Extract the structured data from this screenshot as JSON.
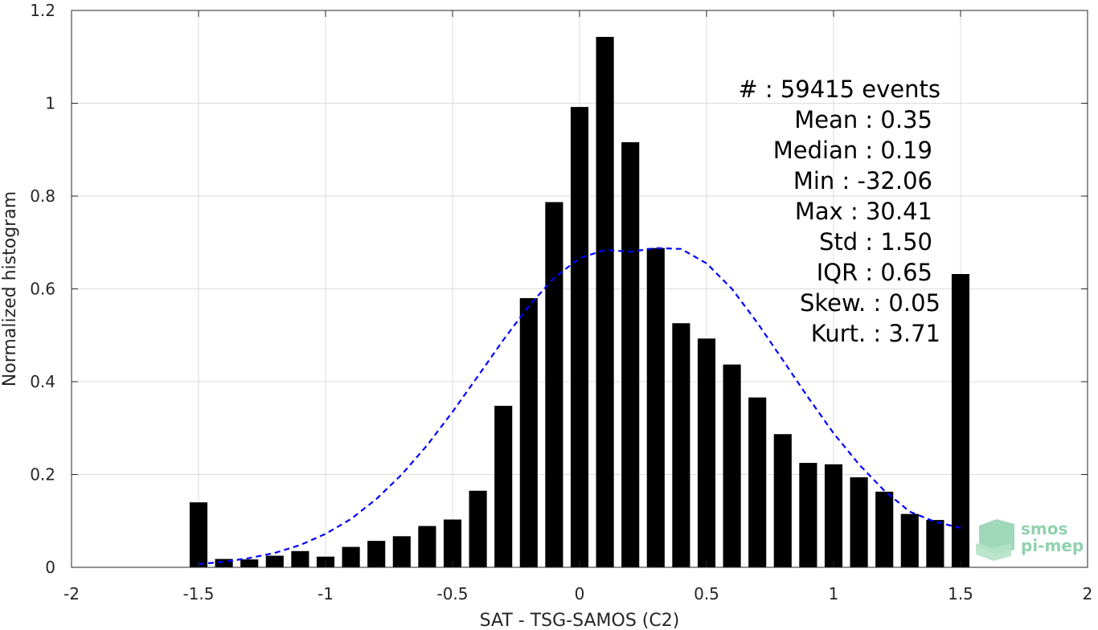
{
  "chart_data": {
    "type": "bar",
    "xlabel": "SAT - TSG-SAMOS (C2)",
    "ylabel": "Normalized histogram",
    "xlim": [
      -2,
      2
    ],
    "ylim": [
      0,
      1.2
    ],
    "x_ticks": [
      -2,
      -1.5,
      -1,
      -0.5,
      0,
      0.5,
      1,
      1.5,
      2
    ],
    "x_tick_labels": [
      "-2",
      "-1.5",
      "-1",
      "-0.5",
      "0",
      "0.5",
      "1",
      "1.5",
      "2"
    ],
    "y_ticks": [
      0,
      0.2,
      0.4,
      0.6,
      0.8,
      1,
      1.2
    ],
    "y_tick_labels": [
      "0",
      "0.2",
      "0.4",
      "0.6",
      "0.8",
      "1",
      "1.2"
    ],
    "grid": true,
    "bar_color": "#000000",
    "bar_width": 0.07,
    "bins": [
      {
        "x": -1.5,
        "y": 0.14
      },
      {
        "x": -1.4,
        "y": 0.018
      },
      {
        "x": -1.3,
        "y": 0.017
      },
      {
        "x": -1.2,
        "y": 0.025
      },
      {
        "x": -1.1,
        "y": 0.035
      },
      {
        "x": -1.0,
        "y": 0.023
      },
      {
        "x": -0.9,
        "y": 0.044
      },
      {
        "x": -0.8,
        "y": 0.057
      },
      {
        "x": -0.7,
        "y": 0.067
      },
      {
        "x": -0.6,
        "y": 0.089
      },
      {
        "x": -0.5,
        "y": 0.103
      },
      {
        "x": -0.4,
        "y": 0.165
      },
      {
        "x": -0.3,
        "y": 0.348
      },
      {
        "x": -0.2,
        "y": 0.58
      },
      {
        "x": -0.1,
        "y": 0.787
      },
      {
        "x": 0.0,
        "y": 0.992
      },
      {
        "x": 0.1,
        "y": 1.143
      },
      {
        "x": 0.2,
        "y": 0.916
      },
      {
        "x": 0.3,
        "y": 0.688
      },
      {
        "x": 0.4,
        "y": 0.526
      },
      {
        "x": 0.5,
        "y": 0.493
      },
      {
        "x": 0.6,
        "y": 0.437
      },
      {
        "x": 0.7,
        "y": 0.366
      },
      {
        "x": 0.8,
        "y": 0.287
      },
      {
        "x": 0.9,
        "y": 0.225
      },
      {
        "x": 1.0,
        "y": 0.222
      },
      {
        "x": 1.1,
        "y": 0.194
      },
      {
        "x": 1.2,
        "y": 0.163
      },
      {
        "x": 1.3,
        "y": 0.115
      },
      {
        "x": 1.4,
        "y": 0.102
      },
      {
        "x": 1.5,
        "y": 0.632
      }
    ],
    "fit_curve": {
      "style": "dashed",
      "color": "#0000ff",
      "x": [
        -1.5,
        -1.4,
        -1.3,
        -1.2,
        -1.1,
        -1.0,
        -0.9,
        -0.8,
        -0.7,
        -0.6,
        -0.5,
        -0.4,
        -0.3,
        -0.2,
        -0.1,
        0.0,
        0.1,
        0.2,
        0.3,
        0.4,
        0.5,
        0.6,
        0.7,
        0.8,
        0.9,
        1.0,
        1.1,
        1.2,
        1.3,
        1.4,
        1.5
      ],
      "y": [
        0.007,
        0.012,
        0.02,
        0.031,
        0.048,
        0.072,
        0.104,
        0.147,
        0.2,
        0.263,
        0.335,
        0.412,
        0.49,
        0.563,
        0.624,
        0.666,
        0.684,
        0.68,
        0.688,
        0.686,
        0.655,
        0.6,
        0.527,
        0.447,
        0.366,
        0.289,
        0.222,
        0.165,
        0.12,
        0.098,
        0.085
      ]
    },
    "stats_lines": [
      "#  : 59415 events",
      "Mean : 0.35",
      "Median : 0.19",
      "Min : -32.06",
      "Max : 30.41",
      "Std : 1.50",
      "IQR : 0.65",
      "Skew. : 0.05",
      "Kurt. : 3.71"
    ]
  },
  "logo": {
    "line1": "smos",
    "line2": "pi-mep",
    "color": "#8fd1ae"
  }
}
